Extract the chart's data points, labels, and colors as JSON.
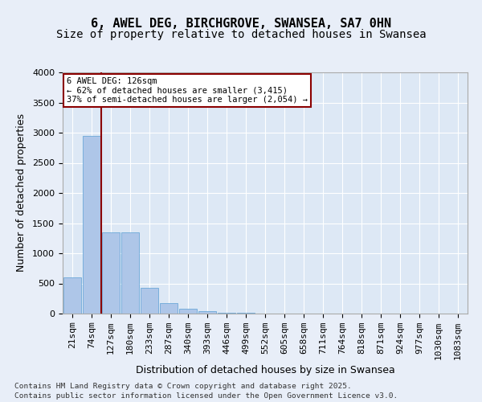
{
  "title1": "6, AWEL DEG, BIRCHGROVE, SWANSEA, SA7 0HN",
  "title2": "Size of property relative to detached houses in Swansea",
  "xlabel": "Distribution of detached houses by size in Swansea",
  "ylabel": "Number of detached properties",
  "bins": [
    "21sqm",
    "74sqm",
    "127sqm",
    "180sqm",
    "233sqm",
    "287sqm",
    "340sqm",
    "393sqm",
    "446sqm",
    "499sqm",
    "552sqm",
    "605sqm",
    "658sqm",
    "711sqm",
    "764sqm",
    "818sqm",
    "871sqm",
    "924sqm",
    "977sqm",
    "1030sqm",
    "1083sqm"
  ],
  "values": [
    600,
    2950,
    1350,
    1350,
    425,
    170,
    80,
    40,
    15,
    8,
    5,
    3,
    2,
    2,
    1,
    1,
    1,
    0,
    0,
    0,
    0
  ],
  "bar_color": "#aec6e8",
  "bar_edge_color": "#5a9fd4",
  "vline_color": "#8b0000",
  "annotation_title": "6 AWEL DEG: 126sqm",
  "annotation_line1": "← 62% of detached houses are smaller (3,415)",
  "annotation_line2": "37% of semi-detached houses are larger (2,054) →",
  "ylim": [
    0,
    4000
  ],
  "yticks": [
    0,
    500,
    1000,
    1500,
    2000,
    2500,
    3000,
    3500,
    4000
  ],
  "bg_color": "#dde8f5",
  "fig_bg_color": "#e8eef8",
  "footer1": "Contains HM Land Registry data © Crown copyright and database right 2025.",
  "footer2": "Contains public sector information licensed under the Open Government Licence v3.0.",
  "title_fontsize": 11,
  "subtitle_fontsize": 10,
  "axis_fontsize": 9,
  "tick_fontsize": 8
}
